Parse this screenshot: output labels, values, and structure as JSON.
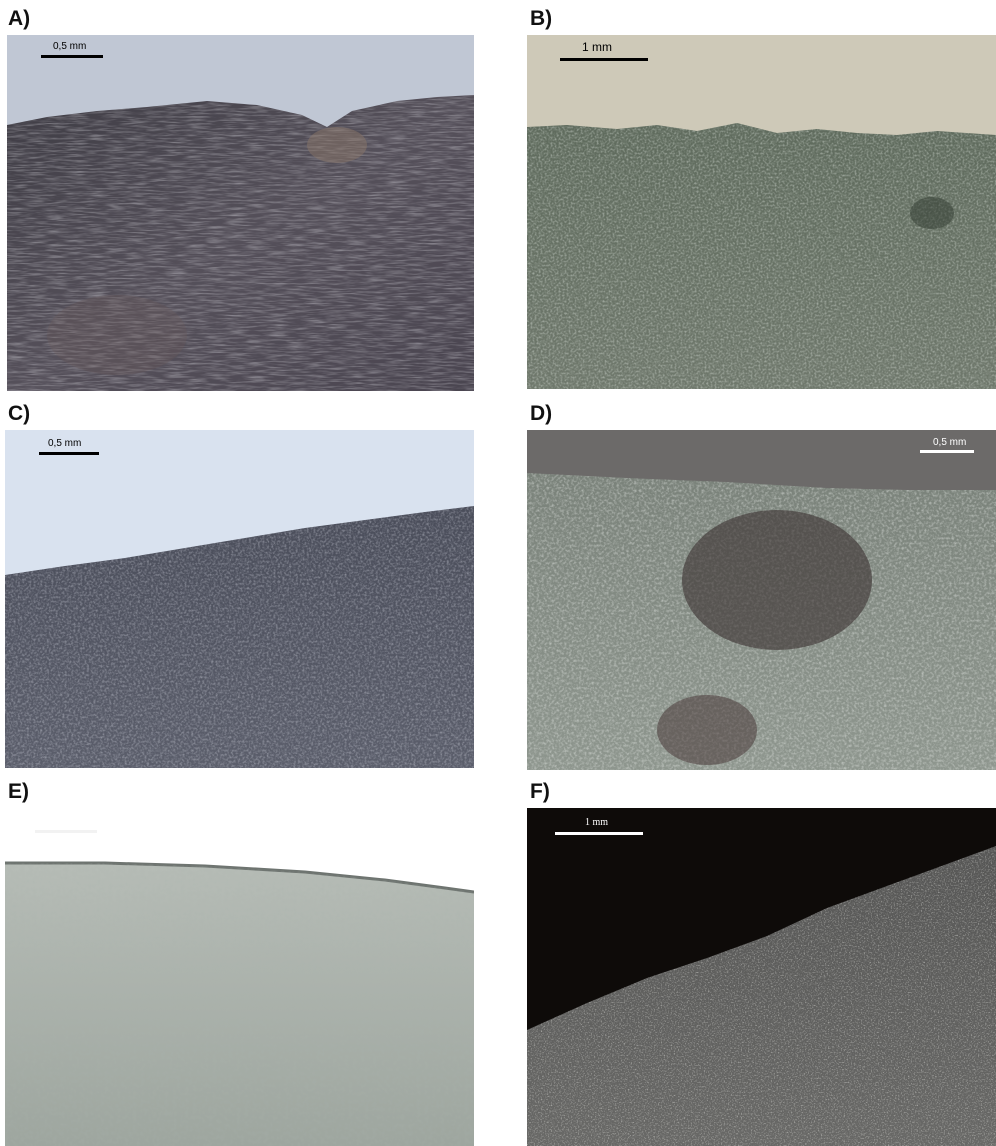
{
  "panels": [
    {
      "id": "A",
      "label": "A)",
      "scale": "0,5 mm",
      "background": "#c0c7d4",
      "rock": "#4a4a52",
      "scale_color": "#000000"
    },
    {
      "id": "B",
      "label": "B)",
      "scale": "1 mm",
      "background": "#cec9b8",
      "rock": "#6f7a6c",
      "scale_color": "#000000"
    },
    {
      "id": "C",
      "label": "C)",
      "scale": "0,5 mm",
      "background": "#d9e2ef",
      "rock": "#575a68",
      "scale_color": "#000000"
    },
    {
      "id": "D",
      "label": "D)",
      "scale": "0,5 mm",
      "background": "#6c6a69",
      "rock": "#868e86",
      "scale_color": "#ffffff"
    },
    {
      "id": "E",
      "label": "E)",
      "scale": "",
      "background": "#ffffff",
      "rock": "#a9b0aa",
      "scale_color": "#ffffff"
    },
    {
      "id": "F",
      "label": "F)",
      "scale": "1 mm",
      "background": "#0e0b09",
      "rock": "#5f5f5d",
      "scale_color": "#ffffff"
    }
  ]
}
